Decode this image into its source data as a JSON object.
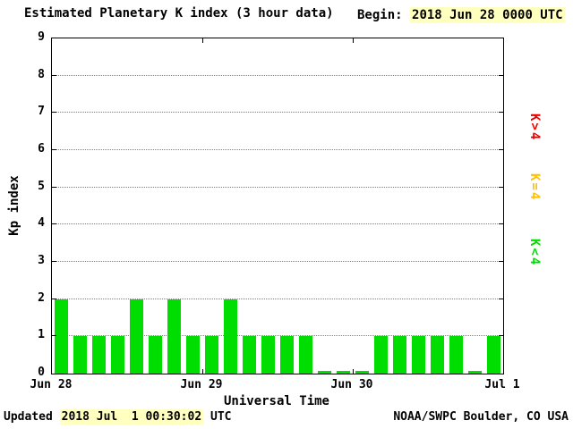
{
  "header": {
    "title": "Estimated Planetary K index (3 hour data)",
    "begin_label": "Begin:",
    "begin_value": "2018 Jun 28 0000 UTC"
  },
  "axes": {
    "ylabel": "Kp index",
    "xlabel": "Universal Time",
    "yticks": [
      "0",
      "1",
      "2",
      "3",
      "4",
      "5",
      "6",
      "7",
      "8",
      "9"
    ],
    "xticks": [
      "Jun 28",
      "Jun 29",
      "Jun 30",
      "Jul 1"
    ]
  },
  "legend": {
    "items": [
      {
        "label": "K>4",
        "color": "#ee0000"
      },
      {
        "label": "K=4",
        "color": "#ffc000"
      },
      {
        "label": "K<4",
        "color": "#00dd00"
      }
    ]
  },
  "footer": {
    "updated_label": "Updated",
    "updated_value": "2018 Jul  1 00:30:02",
    "updated_suffix": "UTC",
    "credit": "NOAA/SWPC Boulder, CO USA"
  },
  "chart_data": {
    "type": "bar",
    "title": "Estimated Planetary K index (3 hour data)",
    "begin": "2018 Jun 28 0000 UTC",
    "interval_hours": 3,
    "categories_days": [
      "Jun 28",
      "Jun 29",
      "Jun 30",
      "Jul 1"
    ],
    "values": [
      2,
      1,
      1,
      1,
      2,
      1,
      2,
      1,
      1,
      2,
      1,
      1,
      1,
      1,
      0,
      0,
      0,
      1,
      1,
      1,
      1,
      1,
      0,
      1
    ],
    "xlabel": "Universal Time",
    "ylabel": "Kp index",
    "ylim": [
      0,
      9
    ],
    "yticks": [
      0,
      1,
      2,
      3,
      4,
      5,
      6,
      7,
      8,
      9
    ],
    "grid": "horizontal-dotted",
    "color_rules": {
      "k_lt_4": "#00dd00",
      "k_eq_4": "#ffc000",
      "k_gt_4": "#ee0000"
    },
    "highlight_color": "#ffffc0"
  }
}
